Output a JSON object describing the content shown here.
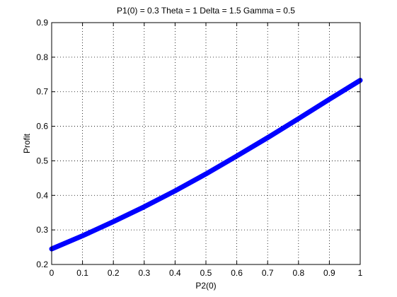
{
  "chart_data": {
    "type": "line",
    "title": "P1(0) = 0.3 Theta = 1 Delta = 1.5 Gamma = 0.5",
    "xlabel": "P2(0)",
    "ylabel": "Profit",
    "xlim": [
      0,
      1
    ],
    "ylim": [
      0.2,
      0.9
    ],
    "xticks": [
      "0",
      "0.1",
      "0.2",
      "0.3",
      "0.4",
      "0.5",
      "0.6",
      "0.7",
      "0.8",
      "0.9",
      "1"
    ],
    "yticks": [
      "0.2",
      "0.3",
      "0.4",
      "0.5",
      "0.6",
      "0.7",
      "0.8",
      "0.9"
    ],
    "grid": true,
    "series": [
      {
        "color": "#0000ff",
        "x": [
          0,
          0.1,
          0.2,
          0.3,
          0.4,
          0.5,
          0.6,
          0.7,
          0.8,
          0.9,
          1.0
        ],
        "y": [
          0.245,
          0.283,
          0.324,
          0.367,
          0.413,
          0.462,
          0.514,
          0.567,
          0.622,
          0.678,
          0.733
        ]
      }
    ]
  }
}
